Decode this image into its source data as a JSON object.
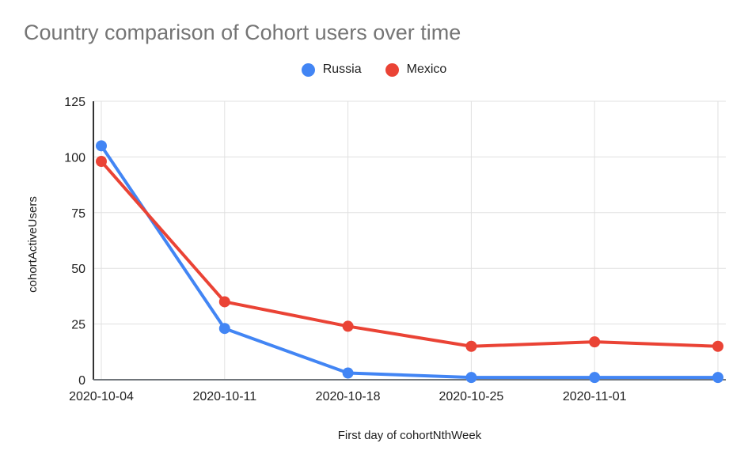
{
  "chart_data": {
    "type": "line",
    "title": "Country comparison of Cohort users over time",
    "xlabel": "First day of cohortNthWeek",
    "ylabel": "cohortActiveUsers",
    "categories": [
      "2020-10-04",
      "2020-10-11",
      "2020-10-18",
      "2020-10-25",
      "2020-11-01",
      ""
    ],
    "series": [
      {
        "name": "Russia",
        "color": "#4285F4",
        "values": [
          105,
          23,
          3,
          1,
          1,
          1
        ]
      },
      {
        "name": "Mexico",
        "color": "#EA4335",
        "values": [
          98,
          35,
          24,
          15,
          17,
          15
        ]
      }
    ],
    "ylim": [
      0,
      125
    ],
    "yticks": [
      0,
      25,
      50,
      75,
      100,
      125
    ],
    "grid": true,
    "legend_position": "top",
    "style": {
      "title_color": "#757575",
      "tick_label_color": "#212121",
      "grid_color": "#e0e0e0",
      "y_axis_color": "#333333",
      "x_axis_color": "#70757a"
    }
  }
}
